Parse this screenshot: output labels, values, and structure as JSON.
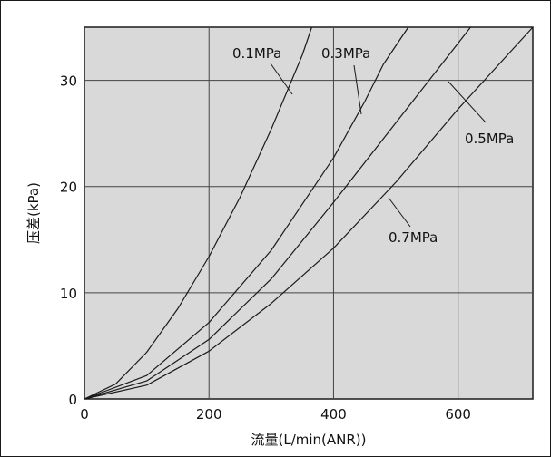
{
  "chart_data": {
    "type": "line",
    "title": "",
    "xlabel": "流量(L/min(ANR))",
    "ylabel": "压差(kPa)",
    "xlim": [
      0,
      720
    ],
    "ylim": [
      0,
      35
    ],
    "x_ticks": [
      0,
      200,
      400,
      600
    ],
    "y_ticks": [
      0,
      10,
      20,
      30
    ],
    "grid": true,
    "background_color": "#d9d9d9",
    "line_color": "#1a1a1a",
    "series": [
      {
        "name": "0.1MPa",
        "x": [
          0,
          50,
          100,
          150,
          200,
          250,
          300,
          350,
          365
        ],
        "y": [
          0,
          1.4,
          4.4,
          8.5,
          13.4,
          19.0,
          25.4,
          32.4,
          35.0
        ]
      },
      {
        "name": "0.3MPa",
        "x": [
          0,
          100,
          200,
          300,
          400,
          450,
          480,
          520
        ],
        "y": [
          0,
          2.2,
          7.2,
          14.0,
          22.7,
          28.0,
          31.5,
          35.0
        ]
      },
      {
        "name": "0.5MPa",
        "x": [
          0,
          100,
          200,
          300,
          400,
          500,
          600,
          620
        ],
        "y": [
          0,
          1.7,
          5.6,
          11.3,
          18.5,
          26.0,
          33.5,
          35.0
        ]
      },
      {
        "name": "0.7MPa",
        "x": [
          0,
          100,
          200,
          300,
          400,
          500,
          600,
          720
        ],
        "y": [
          0,
          1.3,
          4.5,
          9.0,
          14.2,
          20.4,
          27.3,
          35.0
        ]
      }
    ]
  }
}
